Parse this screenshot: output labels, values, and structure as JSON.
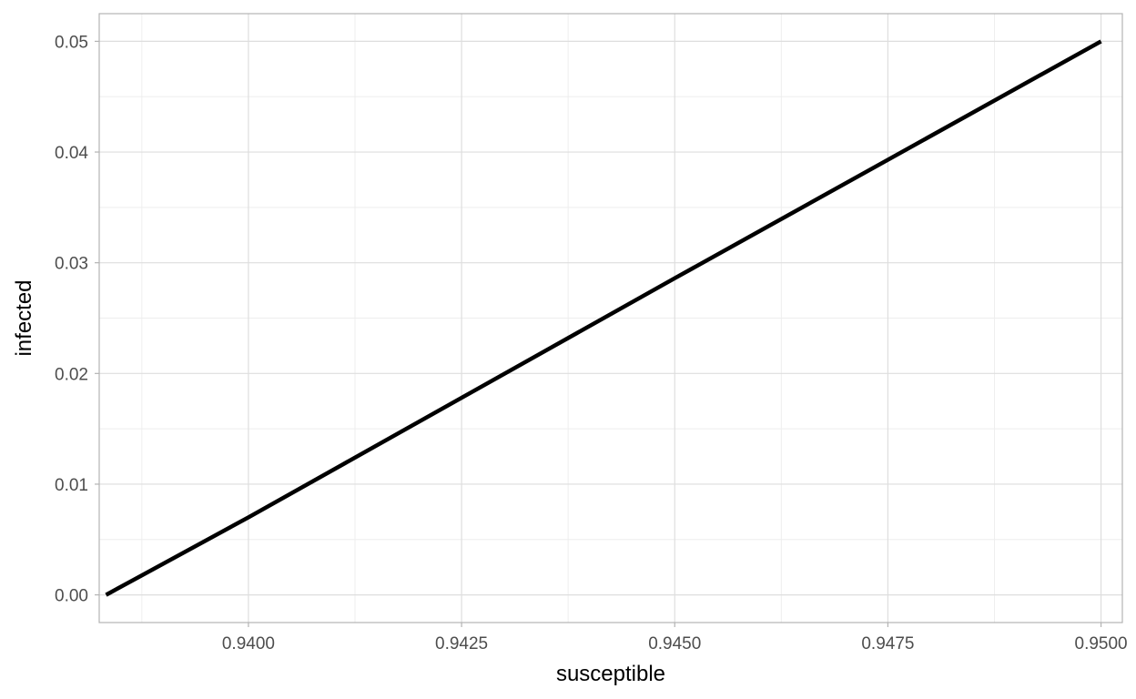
{
  "chart_data": {
    "type": "line",
    "title": "",
    "xlabel": "susceptible",
    "ylabel": "infected",
    "xlim": [
      0.93825,
      0.95025
    ],
    "ylim": [
      -0.0025,
      0.0525
    ],
    "x_ticks": [
      0.94,
      0.9425,
      0.945,
      0.9475,
      0.95
    ],
    "x_tick_labels": [
      "0.9400",
      "0.9425",
      "0.9450",
      "0.9475",
      "0.9500"
    ],
    "x_minor_ticks": [
      0.93875,
      0.94125,
      0.94375,
      0.94625,
      0.94875
    ],
    "y_ticks": [
      0.0,
      0.01,
      0.02,
      0.03,
      0.04,
      0.05
    ],
    "y_tick_labels": [
      "0.00",
      "0.01",
      "0.02",
      "0.03",
      "0.04",
      "0.05"
    ],
    "y_minor_ticks": [
      0.005,
      0.015,
      0.025,
      0.035,
      0.045
    ],
    "grid": true,
    "legend": "none",
    "series": [
      {
        "color": "#000000",
        "x": [
          0.95,
          0.9475,
          0.945,
          0.9425,
          0.94,
          0.93833
        ],
        "y": [
          0.05,
          0.0393,
          0.0286,
          0.0178,
          0.007,
          0.0
        ]
      }
    ],
    "colors": {
      "panel_border": "#b3b3b3",
      "major_grid": "#dedede",
      "minor_grid": "#eeeeee",
      "tick_text": "#4d4d4d",
      "axis_title": "#000000",
      "line": "#000000"
    }
  }
}
